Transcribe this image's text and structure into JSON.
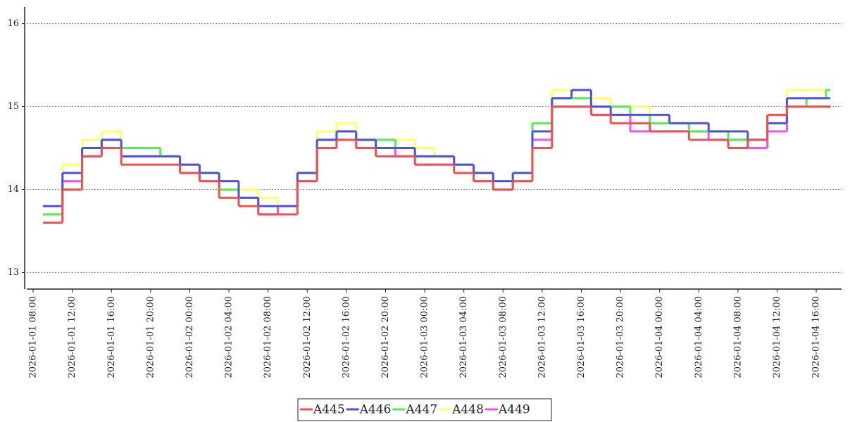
{
  "chart_data": {
    "type": "line",
    "x": [
      "2026-01-01 09:00",
      "2026-01-01 11:00",
      "2026-01-01 13:00",
      "2026-01-01 15:00",
      "2026-01-01 17:00",
      "2026-01-01 19:00",
      "2026-01-01 21:00",
      "2026-01-01 23:00",
      "2026-01-02 01:00",
      "2026-01-02 03:00",
      "2026-01-02 05:00",
      "2026-01-02 07:00",
      "2026-01-02 09:00",
      "2026-01-02 11:00",
      "2026-01-02 13:00",
      "2026-01-02 15:00",
      "2026-01-02 17:00",
      "2026-01-02 19:00",
      "2026-01-02 21:00",
      "2026-01-02 23:00",
      "2026-01-03 01:00",
      "2026-01-03 03:00",
      "2026-01-03 05:00",
      "2026-01-03 07:00",
      "2026-01-03 09:00",
      "2026-01-03 11:00",
      "2026-01-03 13:00",
      "2026-01-03 15:00",
      "2026-01-03 17:00",
      "2026-01-03 19:00",
      "2026-01-03 21:00",
      "2026-01-03 23:00",
      "2026-01-04 01:00",
      "2026-01-04 03:00",
      "2026-01-04 05:00",
      "2026-01-04 07:00",
      "2026-01-04 09:00",
      "2026-01-04 11:00",
      "2026-01-04 13:00",
      "2026-01-04 15:00",
      "2026-01-04 17:00"
    ],
    "series": [
      {
        "name": "A445",
        "color": "#f05050",
        "values": [
          13.6,
          14.0,
          14.4,
          14.5,
          14.3,
          14.3,
          14.3,
          14.2,
          14.1,
          13.9,
          13.8,
          13.7,
          13.7,
          14.1,
          14.5,
          14.6,
          14.5,
          14.4,
          14.4,
          14.3,
          14.3,
          14.2,
          14.1,
          14.0,
          14.1,
          14.5,
          15.0,
          15.0,
          14.9,
          14.8,
          14.8,
          14.7,
          14.7,
          14.6,
          14.6,
          14.5,
          14.6,
          14.9,
          15.0,
          15.0,
          15.0
        ]
      },
      {
        "name": "A446",
        "color": "#5050e0",
        "values": [
          13.8,
          14.2,
          14.5,
          14.6,
          14.4,
          14.4,
          14.4,
          14.3,
          14.2,
          14.1,
          13.9,
          13.8,
          13.8,
          14.2,
          14.6,
          14.7,
          14.6,
          14.5,
          14.5,
          14.4,
          14.4,
          14.3,
          14.2,
          14.1,
          14.2,
          14.7,
          15.1,
          15.2,
          15.0,
          14.9,
          14.9,
          14.9,
          14.8,
          14.8,
          14.7,
          14.7,
          14.6,
          14.8,
          15.1,
          15.1,
          15.1
        ]
      },
      {
        "name": "A447",
        "color": "#50f050",
        "values": [
          13.7,
          14.2,
          14.5,
          14.6,
          14.5,
          14.5,
          14.4,
          14.3,
          14.2,
          14.0,
          13.9,
          13.8,
          13.8,
          14.2,
          14.6,
          14.7,
          14.6,
          14.6,
          14.5,
          14.4,
          14.4,
          14.3,
          14.2,
          14.0,
          14.2,
          14.8,
          15.1,
          15.1,
          15.0,
          15.0,
          14.9,
          14.8,
          14.8,
          14.7,
          14.7,
          14.6,
          14.6,
          14.8,
          15.0,
          15.1,
          15.2
        ]
      },
      {
        "name": "A448",
        "color": "#ffff66",
        "values": [
          13.7,
          14.3,
          14.6,
          14.7,
          14.5,
          14.5,
          14.4,
          14.3,
          14.2,
          14.1,
          14.0,
          13.9,
          13.8,
          14.2,
          14.7,
          14.8,
          14.6,
          14.6,
          14.6,
          14.5,
          14.4,
          14.3,
          14.2,
          14.1,
          14.2,
          14.8,
          15.2,
          15.2,
          15.1,
          15.0,
          15.0,
          14.9,
          14.8,
          14.8,
          14.7,
          14.7,
          14.6,
          14.9,
          15.2,
          15.2,
          15.2
        ]
      },
      {
        "name": "A449",
        "color": "#f050f0",
        "values": [
          13.7,
          14.1,
          14.4,
          14.5,
          14.4,
          14.4,
          14.4,
          14.2,
          14.1,
          14.0,
          13.8,
          13.7,
          13.8,
          14.1,
          14.5,
          14.6,
          14.5,
          14.5,
          14.4,
          14.3,
          14.3,
          14.3,
          14.1,
          14.0,
          14.1,
          14.6,
          15.0,
          15.0,
          14.9,
          14.9,
          14.7,
          14.7,
          14.7,
          14.7,
          14.6,
          14.6,
          14.5,
          14.7,
          15.0,
          15.0,
          15.0
        ]
      }
    ],
    "xlim": [
      "2026-01-01 07:08",
      "2026-01-04 18:35"
    ],
    "xticks": [
      "2026-01-01 08:00",
      "2026-01-01 12:00",
      "2026-01-01 16:00",
      "2026-01-01 20:00",
      "2026-01-02 00:00",
      "2026-01-02 04:00",
      "2026-01-02 08:00",
      "2026-01-02 12:00",
      "2026-01-02 16:00",
      "2026-01-02 20:00",
      "2026-01-03 00:00",
      "2026-01-03 04:00",
      "2026-01-03 08:00",
      "2026-01-03 12:00",
      "2026-01-03 16:00",
      "2026-01-03 20:00",
      "2026-01-04 00:00",
      "2026-01-04 04:00",
      "2026-01-04 08:00",
      "2026-01-04 12:00",
      "2026-01-04 16:00"
    ],
    "ylim": [
      12.8,
      16.2
    ],
    "yticks": [
      13,
      14,
      15,
      16
    ],
    "grid": true
  }
}
